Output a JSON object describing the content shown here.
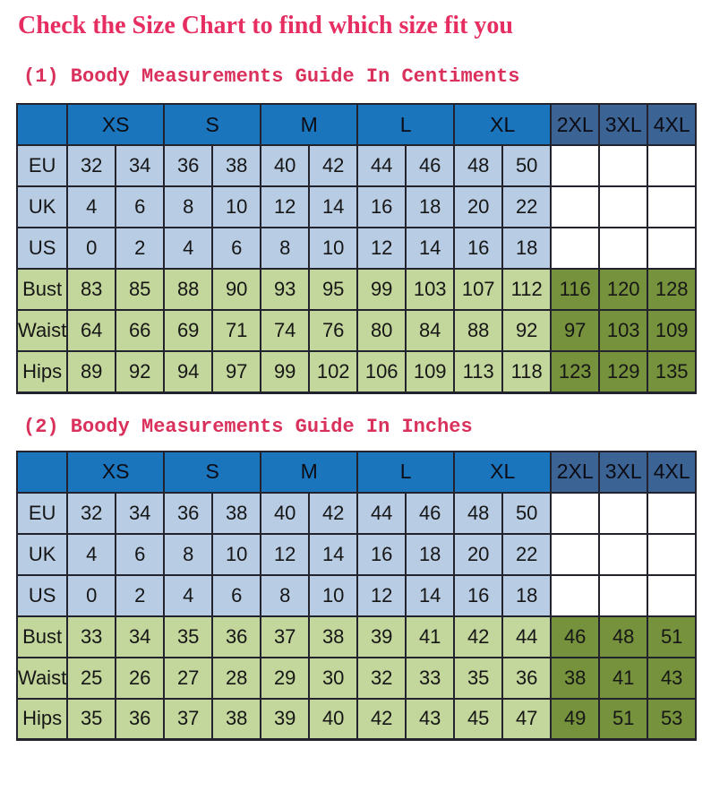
{
  "page": {
    "title": "Check the Size Chart to find which size fit you"
  },
  "chart_data": [
    {
      "type": "table",
      "title": "(1) Boody Measurements Guide In Centiments",
      "unit": "centimeters",
      "size_groups": [
        "XS",
        "S",
        "M",
        "L",
        "XL"
      ],
      "extended_sizes": [
        "2XL",
        "3XL",
        "4XL"
      ],
      "rows": [
        {
          "label": "EU",
          "kind": "size",
          "values": [
            "32",
            "34",
            "36",
            "38",
            "40",
            "42",
            "44",
            "46",
            "48",
            "50"
          ],
          "extended": [
            "",
            "",
            ""
          ]
        },
        {
          "label": "UK",
          "kind": "size",
          "values": [
            "4",
            "6",
            "8",
            "10",
            "12",
            "14",
            "16",
            "18",
            "20",
            "22"
          ],
          "extended": [
            "",
            "",
            ""
          ]
        },
        {
          "label": "US",
          "kind": "size",
          "values": [
            "0",
            "2",
            "4",
            "6",
            "8",
            "10",
            "12",
            "14",
            "16",
            "18"
          ],
          "extended": [
            "",
            "",
            ""
          ]
        },
        {
          "label": "Bust",
          "kind": "measure",
          "values": [
            "83",
            "85",
            "88",
            "90",
            "93",
            "95",
            "99",
            "103",
            "107",
            "112"
          ],
          "extended": [
            "116",
            "120",
            "128"
          ]
        },
        {
          "label": "Waist",
          "kind": "measure",
          "values": [
            "64",
            "66",
            "69",
            "71",
            "74",
            "76",
            "80",
            "84",
            "88",
            "92"
          ],
          "extended": [
            "97",
            "103",
            "109"
          ]
        },
        {
          "label": "Hips",
          "kind": "measure",
          "values": [
            "89",
            "92",
            "94",
            "97",
            "99",
            "102",
            "106",
            "109",
            "113",
            "118"
          ],
          "extended": [
            "123",
            "129",
            "135"
          ]
        }
      ]
    },
    {
      "type": "table",
      "title": "(2) Boody Measurements Guide In Inches",
      "unit": "inches",
      "size_groups": [
        "XS",
        "S",
        "M",
        "L",
        "XL"
      ],
      "extended_sizes": [
        "2XL",
        "3XL",
        "4XL"
      ],
      "rows": [
        {
          "label": "EU",
          "kind": "size",
          "values": [
            "32",
            "34",
            "36",
            "38",
            "40",
            "42",
            "44",
            "46",
            "48",
            "50"
          ],
          "extended": [
            "",
            "",
            ""
          ]
        },
        {
          "label": "UK",
          "kind": "size",
          "values": [
            "4",
            "6",
            "8",
            "10",
            "12",
            "14",
            "16",
            "18",
            "20",
            "22"
          ],
          "extended": [
            "",
            "",
            ""
          ]
        },
        {
          "label": "US",
          "kind": "size",
          "values": [
            "0",
            "2",
            "4",
            "6",
            "8",
            "10",
            "12",
            "14",
            "16",
            "18"
          ],
          "extended": [
            "",
            "",
            ""
          ]
        },
        {
          "label": "Bust",
          "kind": "measure",
          "values": [
            "33",
            "34",
            "35",
            "36",
            "37",
            "38",
            "39",
            "41",
            "42",
            "44"
          ],
          "extended": [
            "46",
            "48",
            "51"
          ]
        },
        {
          "label": "Waist",
          "kind": "measure",
          "values": [
            "25",
            "26",
            "27",
            "28",
            "29",
            "30",
            "32",
            "33",
            "35",
            "36"
          ],
          "extended": [
            "38",
            "41",
            "43"
          ]
        },
        {
          "label": "Hips",
          "kind": "measure",
          "values": [
            "35",
            "36",
            "37",
            "38",
            "39",
            "40",
            "42",
            "43",
            "45",
            "47"
          ],
          "extended": [
            "49",
            "51",
            "53"
          ]
        }
      ]
    }
  ],
  "colors": {
    "title_pink": "#e62e62",
    "heading_pink": "#d9305c",
    "header_blue": "#1b75bd",
    "header_dark_blue": "#3b6394",
    "size_row_blue": "#b8cce4",
    "measure_row_green": "#c3d69b",
    "extended_green": "#76923c",
    "empty_cell_white": "#ffffff",
    "border": "#23232e"
  }
}
